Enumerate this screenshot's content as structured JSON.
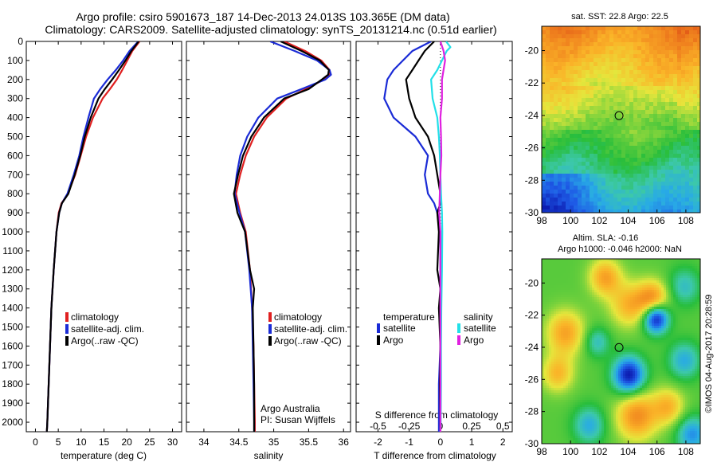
{
  "title": {
    "line1": "Argo profile: csiro 5901673_187 14-Dec-2013 24.013S 103.365E (DM data)",
    "line2": "Climatology: CARS2009. Satellite-adjusted climatology: synTS_20131214.nc (0.51d earlier)"
  },
  "colors": {
    "climatology": "#e02020",
    "satellite": "#1a2bd6",
    "argo": "#000000",
    "sat_sal": "#22e0e8",
    "argo_sal": "#e020e0"
  },
  "chart_data": [
    {
      "id": "temperature",
      "type": "line",
      "xlabel": "temperature (deg C)",
      "ylabel": "",
      "xlim": [
        -2,
        32
      ],
      "ylim": [
        0,
        2050
      ],
      "y_inverted": true,
      "xticks": [
        0,
        5,
        10,
        15,
        20,
        25,
        30
      ],
      "xtick_labels": [
        "0",
        "5",
        "10",
        "15",
        "20",
        "25",
        "30"
      ],
      "yticks": [
        0,
        100,
        200,
        300,
        400,
        500,
        600,
        700,
        800,
        900,
        1000,
        1100,
        1200,
        1300,
        1400,
        1500,
        1600,
        1700,
        1800,
        1900,
        2000
      ],
      "ytick_labels": [
        "0",
        "100",
        "200",
        "300",
        "400",
        "500",
        "600",
        "700",
        "800",
        "900",
        "1000",
        "1100",
        "1200",
        "1300",
        "1400",
        "1500",
        "1600",
        "1700",
        "1800",
        "1900",
        "2000"
      ],
      "legend": [
        "climatology",
        "satellite-adj. clim.",
        "Argo(..raw -QC)"
      ],
      "series": [
        {
          "name": "climatology",
          "color": "#e02020",
          "y": [
            0,
            50,
            100,
            150,
            200,
            250,
            300,
            400,
            500,
            600,
            700,
            800,
            850,
            900,
            1000,
            1200,
            1400,
            1600,
            1800,
            2000,
            2050
          ],
          "x": [
            22.8,
            21.2,
            20.1,
            19.0,
            17.8,
            16.3,
            14.7,
            12.6,
            11.1,
            9.9,
            8.7,
            7.1,
            5.7,
            5.1,
            4.6,
            4.0,
            3.5,
            3.2,
            2.9,
            2.6,
            2.5
          ]
        },
        {
          "name": "satellite-adj. clim.",
          "color": "#1a2bd6",
          "y": [
            0,
            50,
            100,
            150,
            200,
            250,
            300,
            400,
            500,
            600,
            700,
            800,
            850,
            900,
            1000,
            1200,
            1400,
            1600,
            1800,
            2000,
            2050
          ],
          "x": [
            22.5,
            20.6,
            19.2,
            17.6,
            15.8,
            14.2,
            12.8,
            11.6,
            10.5,
            9.6,
            8.4,
            7.0,
            5.8,
            5.2,
            4.6,
            4.0,
            3.5,
            3.2,
            2.9,
            2.6,
            2.5
          ]
        },
        {
          "name": "Argo(..raw -QC)",
          "color": "#000000",
          "y": [
            0,
            50,
            100,
            150,
            200,
            250,
            300,
            400,
            500,
            600,
            700,
            800,
            850,
            900,
            1000,
            1200,
            1400,
            1600,
            1800,
            2000,
            2050
          ],
          "x": [
            22.6,
            21.0,
            19.7,
            18.3,
            16.8,
            15.2,
            13.8,
            12.1,
            10.8,
            9.8,
            8.6,
            7.2,
            5.8,
            5.2,
            4.6,
            4.0,
            3.5,
            3.2,
            2.9,
            2.6,
            2.5
          ]
        }
      ]
    },
    {
      "id": "salinity",
      "type": "line",
      "xlabel": "salinity",
      "ylabel": "",
      "xlim": [
        33.75,
        36.1
      ],
      "ylim": [
        0,
        2050
      ],
      "y_inverted": true,
      "xticks": [
        34,
        34.5,
        35,
        35.5,
        36
      ],
      "xtick_labels": [
        "34",
        "34.5",
        "35",
        "35.5",
        "36"
      ],
      "legend": [
        "climatology",
        "satellite-adj. clim.",
        "Argo(..raw -QC)"
      ],
      "annotation": [
        "Argo Australia",
        "PI: Susan Wijffels"
      ],
      "series": [
        {
          "name": "climatology",
          "color": "#e02020",
          "y": [
            0,
            50,
            100,
            150,
            175,
            200,
            250,
            300,
            400,
            500,
            600,
            700,
            800,
            900,
            1000,
            1200,
            1400,
            1600,
            1800,
            2000,
            2050
          ],
          "x": [
            35.15,
            35.45,
            35.68,
            35.8,
            35.8,
            35.72,
            35.46,
            35.18,
            34.9,
            34.72,
            34.6,
            34.52,
            34.46,
            34.52,
            34.6,
            34.66,
            34.69,
            34.71,
            34.72,
            34.73,
            34.73
          ]
        },
        {
          "name": "satellite-adj. clim.",
          "color": "#1a2bd6",
          "y": [
            0,
            50,
            100,
            150,
            175,
            200,
            250,
            300,
            400,
            500,
            600,
            700,
            800,
            900,
            1000,
            1200,
            1400,
            1600,
            1800,
            2000,
            2050
          ],
          "x": [
            34.95,
            35.3,
            35.62,
            35.8,
            35.82,
            35.74,
            35.4,
            35.05,
            34.78,
            34.62,
            34.52,
            34.47,
            34.44,
            34.51,
            34.59,
            34.65,
            34.69,
            34.7,
            34.71,
            34.72,
            34.72
          ]
        },
        {
          "name": "Argo(..raw -QC)",
          "color": "#000000",
          "y": [
            0,
            50,
            100,
            150,
            175,
            200,
            250,
            300,
            400,
            500,
            600,
            700,
            800,
            900,
            1000,
            1200,
            1300,
            1400,
            1600,
            1800,
            2000,
            2050
          ],
          "x": [
            35.1,
            35.4,
            35.66,
            35.79,
            35.78,
            35.69,
            35.5,
            35.15,
            34.86,
            34.68,
            34.56,
            34.49,
            34.43,
            34.48,
            34.59,
            34.66,
            34.72,
            34.7,
            34.71,
            34.72,
            34.72,
            34.72
          ]
        }
      ]
    },
    {
      "id": "difference",
      "type": "line",
      "xlabel": "T difference from climatology",
      "x2label": "S difference from climatology",
      "xlim": [
        -2.7,
        2.3
      ],
      "ylim": [
        0,
        2050
      ],
      "y_inverted": true,
      "xticks": [
        -2,
        -1,
        0,
        1,
        2
      ],
      "xtick_labels": [
        "-2",
        "-1",
        "0",
        "1",
        "2"
      ],
      "x2tick_labels": [
        "-0.5",
        "-0.25",
        "0",
        "0.25",
        "0.5"
      ],
      "legend_headers": [
        "temperature",
        "salinity"
      ],
      "legend": [
        "satellite",
        "Argo",
        "satellite",
        "Argo"
      ],
      "series": [
        {
          "name": "temperature satellite",
          "color": "#1a2bd6",
          "y": [
            0,
            50,
            100,
            150,
            200,
            300,
            400,
            500,
            600,
            700,
            800,
            850,
            900,
            1000,
            1200,
            1400,
            1600,
            1800,
            2000,
            2050
          ],
          "x": [
            -0.3,
            -0.9,
            -1.2,
            -1.5,
            -1.7,
            -1.8,
            -1.5,
            -0.8,
            -0.4,
            -0.5,
            -0.4,
            -0.2,
            -0.1,
            0.0,
            0.0,
            0.0,
            0.0,
            -0.05,
            -0.05,
            -0.05
          ]
        },
        {
          "name": "temperature Argo",
          "color": "#000000",
          "y": [
            0,
            50,
            100,
            150,
            200,
            300,
            400,
            500,
            600,
            700,
            800,
            850,
            900,
            1000,
            1200,
            1300,
            1400,
            1600,
            1800,
            2000,
            2050
          ],
          "x": [
            -0.2,
            -0.5,
            -0.7,
            -0.9,
            -1.1,
            -1.0,
            -0.8,
            -0.4,
            -0.2,
            -0.1,
            0.0,
            0.0,
            -0.1,
            -0.05,
            -0.1,
            0.0,
            -0.05,
            0.0,
            -0.02,
            0.0,
            0.0
          ]
        },
        {
          "name": "salinity satellite",
          "color": "#22e0e8",
          "y": [
            0,
            30,
            50,
            100,
            150,
            200,
            300,
            400,
            500,
            600,
            700,
            800,
            900,
            1000,
            1200,
            1400,
            1600,
            1800,
            2000,
            2050
          ],
          "x": [
            0.18,
            0.32,
            0.2,
            0.05,
            -0.1,
            -0.3,
            -0.25,
            -0.1,
            -0.05,
            -0.02,
            0.0,
            0.02,
            0.05,
            0.06,
            0.05,
            0.03,
            0.02,
            0.02,
            0.01,
            0.0
          ]
        },
        {
          "name": "salinity Argo",
          "color": "#e020e0",
          "y": [
            0,
            50,
            100,
            200,
            300,
            400,
            500,
            600,
            700,
            800,
            900,
            1000,
            1200,
            1400,
            1600,
            1800,
            2000,
            2050
          ],
          "x": [
            0.0,
            0.1,
            0.15,
            0.05,
            0.05,
            0.0,
            0.02,
            0.03,
            0.0,
            -0.02,
            -0.04,
            0.0,
            0.0,
            0.0,
            0.0,
            0.0,
            0.0,
            0.0
          ]
        }
      ]
    },
    {
      "id": "sst-map",
      "type": "heatmap",
      "title": "sat. SST: 22.8  Argo: 22.5",
      "xlim": [
        98,
        109
      ],
      "ylim": [
        -30,
        -18.5
      ],
      "xticks": [
        98,
        100,
        102,
        104,
        106,
        108
      ],
      "yticks": [
        -20,
        -22,
        -24,
        -26,
        -28,
        -30
      ],
      "marker": {
        "lon": 103.365,
        "lat": -24.013
      }
    },
    {
      "id": "sla-map",
      "type": "heatmap",
      "title": [
        "Altim. SLA: -0.16",
        "Argo h1000: -0.046 h2000: NaN"
      ],
      "xlim": [
        98,
        109
      ],
      "ylim": [
        -30,
        -18.5
      ],
      "xticks": [
        98,
        100,
        102,
        104,
        106,
        108
      ],
      "yticks": [
        -20,
        -22,
        -24,
        -26,
        -28,
        -30
      ],
      "marker": {
        "lon": 103.365,
        "lat": -24.013
      }
    }
  ],
  "credit": "©IMOS 04-Aug-2017 20:28:59"
}
